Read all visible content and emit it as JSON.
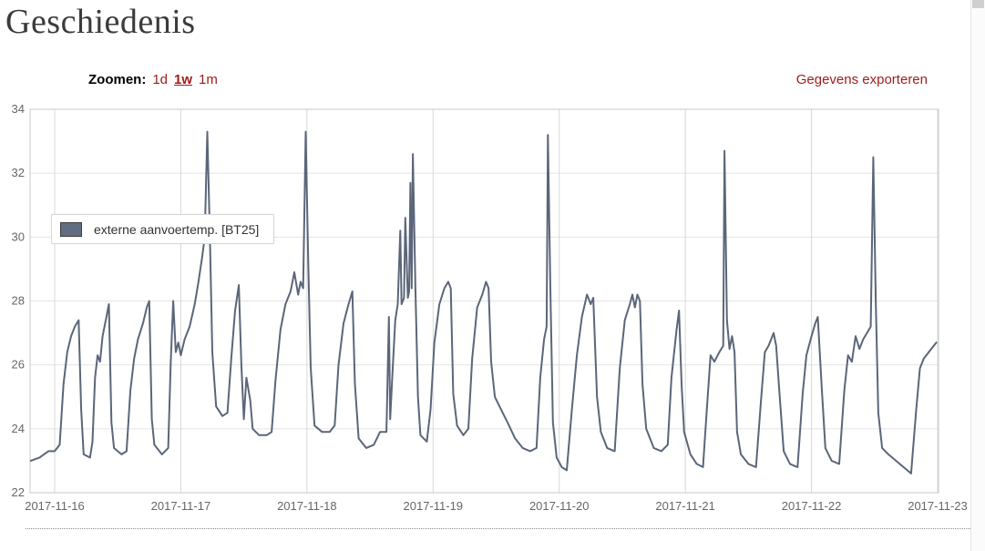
{
  "page": {
    "title": "Geschiedenis"
  },
  "toolbar": {
    "zoom_label": "Zoomen:",
    "zoom_options": [
      {
        "label": "1d",
        "active": false
      },
      {
        "label": "1w",
        "active": true
      },
      {
        "label": "1m",
        "active": false
      }
    ],
    "export_label": "Gegevens exporteren"
  },
  "legend": {
    "label": "externe aanvoertemp. [BT25]",
    "swatch_color": "#616d80",
    "swatch_border": "#3e3e3e"
  },
  "colors": {
    "accent_red": "#9d1c1c",
    "line": "#5b6679",
    "grid": "#e0e0e0",
    "plot_border": "#c8c8c8",
    "axis_label": "#666666"
  },
  "chart_data": {
    "type": "line",
    "title": "",
    "xlabel": "",
    "ylabel": "",
    "legend_position": "top-left",
    "grid": true,
    "x_axis": {
      "labels": [
        "2017-11-16",
        "2017-11-17",
        "2017-11-18",
        "2017-11-19",
        "2017-11-20",
        "2017-11-21",
        "2017-11-22",
        "2017-11-23"
      ],
      "range_days": [
        -0.195,
        7.005
      ]
    },
    "y_axis": {
      "ticks": [
        22,
        24,
        26,
        28,
        30,
        32,
        34
      ],
      "range": [
        22,
        34
      ]
    },
    "series": [
      {
        "name": "externe aanvoertemp. [BT25]",
        "points": [
          [
            -0.19,
            23.0
          ],
          [
            -0.12,
            23.1
          ],
          [
            -0.05,
            23.3
          ],
          [
            0.0,
            23.3
          ],
          [
            0.04,
            23.5
          ],
          [
            0.07,
            25.4
          ],
          [
            0.1,
            26.4
          ],
          [
            0.13,
            26.9
          ],
          [
            0.16,
            27.2
          ],
          [
            0.19,
            27.4
          ],
          [
            0.21,
            24.6
          ],
          [
            0.23,
            23.2
          ],
          [
            0.28,
            23.1
          ],
          [
            0.3,
            23.6
          ],
          [
            0.32,
            25.6
          ],
          [
            0.34,
            26.3
          ],
          [
            0.36,
            26.1
          ],
          [
            0.38,
            26.9
          ],
          [
            0.41,
            27.5
          ],
          [
            0.43,
            27.9
          ],
          [
            0.45,
            24.2
          ],
          [
            0.47,
            23.4
          ],
          [
            0.53,
            23.2
          ],
          [
            0.57,
            23.3
          ],
          [
            0.6,
            25.2
          ],
          [
            0.63,
            26.2
          ],
          [
            0.66,
            26.8
          ],
          [
            0.7,
            27.3
          ],
          [
            0.73,
            27.8
          ],
          [
            0.75,
            28.0
          ],
          [
            0.77,
            24.3
          ],
          [
            0.79,
            23.5
          ],
          [
            0.85,
            23.2
          ],
          [
            0.9,
            23.4
          ],
          [
            0.92,
            26.1
          ],
          [
            0.94,
            28.0
          ],
          [
            0.96,
            26.4
          ],
          [
            0.98,
            26.7
          ],
          [
            1.0,
            26.3
          ],
          [
            1.03,
            26.8
          ],
          [
            1.07,
            27.2
          ],
          [
            1.11,
            27.9
          ],
          [
            1.14,
            28.6
          ],
          [
            1.17,
            29.4
          ],
          [
            1.19,
            30.0
          ],
          [
            1.21,
            33.3
          ],
          [
            1.23,
            30.1
          ],
          [
            1.25,
            26.4
          ],
          [
            1.28,
            24.7
          ],
          [
            1.33,
            24.4
          ],
          [
            1.37,
            24.5
          ],
          [
            1.4,
            26.2
          ],
          [
            1.43,
            27.7
          ],
          [
            1.46,
            28.5
          ],
          [
            1.48,
            26.0
          ],
          [
            1.5,
            24.3
          ],
          [
            1.52,
            25.6
          ],
          [
            1.55,
            24.9
          ],
          [
            1.57,
            24.0
          ],
          [
            1.62,
            23.8
          ],
          [
            1.68,
            23.8
          ],
          [
            1.72,
            23.9
          ],
          [
            1.75,
            25.5
          ],
          [
            1.79,
            27.1
          ],
          [
            1.83,
            27.9
          ],
          [
            1.87,
            28.3
          ],
          [
            1.9,
            28.9
          ],
          [
            1.93,
            28.2
          ],
          [
            1.95,
            28.6
          ],
          [
            1.97,
            28.4
          ],
          [
            1.99,
            33.3
          ],
          [
            2.01,
            29.3
          ],
          [
            2.03,
            25.9
          ],
          [
            2.06,
            24.1
          ],
          [
            2.12,
            23.9
          ],
          [
            2.18,
            23.9
          ],
          [
            2.22,
            24.1
          ],
          [
            2.25,
            26.0
          ],
          [
            2.29,
            27.3
          ],
          [
            2.33,
            27.9
          ],
          [
            2.36,
            28.3
          ],
          [
            2.38,
            25.4
          ],
          [
            2.41,
            23.7
          ],
          [
            2.47,
            23.4
          ],
          [
            2.53,
            23.5
          ],
          [
            2.58,
            23.9
          ],
          [
            2.63,
            23.9
          ],
          [
            2.65,
            27.5
          ],
          [
            2.66,
            24.3
          ],
          [
            2.68,
            25.9
          ],
          [
            2.7,
            27.4
          ],
          [
            2.72,
            27.9
          ],
          [
            2.74,
            30.2
          ],
          [
            2.75,
            27.9
          ],
          [
            2.77,
            28.1
          ],
          [
            2.78,
            30.6
          ],
          [
            2.8,
            28.1
          ],
          [
            2.81,
            28.3
          ],
          [
            2.82,
            31.7
          ],
          [
            2.83,
            28.4
          ],
          [
            2.84,
            32.6
          ],
          [
            2.86,
            28.4
          ],
          [
            2.88,
            25.0
          ],
          [
            2.9,
            23.8
          ],
          [
            2.95,
            23.6
          ],
          [
            2.98,
            24.6
          ],
          [
            3.01,
            26.7
          ],
          [
            3.05,
            27.9
          ],
          [
            3.09,
            28.4
          ],
          [
            3.12,
            28.6
          ],
          [
            3.14,
            28.4
          ],
          [
            3.16,
            25.1
          ],
          [
            3.19,
            24.1
          ],
          [
            3.24,
            23.8
          ],
          [
            3.28,
            24.0
          ],
          [
            3.31,
            26.2
          ],
          [
            3.35,
            27.8
          ],
          [
            3.39,
            28.2
          ],
          [
            3.42,
            28.6
          ],
          [
            3.44,
            28.4
          ],
          [
            3.46,
            26.1
          ],
          [
            3.49,
            25.0
          ],
          [
            3.54,
            24.6
          ],
          [
            3.59,
            24.2
          ],
          [
            3.65,
            23.7
          ],
          [
            3.71,
            23.4
          ],
          [
            3.77,
            23.3
          ],
          [
            3.82,
            23.4
          ],
          [
            3.85,
            25.6
          ],
          [
            3.88,
            26.8
          ],
          [
            3.9,
            27.2
          ],
          [
            3.91,
            33.2
          ],
          [
            3.93,
            28.4
          ],
          [
            3.95,
            24.2
          ],
          [
            3.98,
            23.1
          ],
          [
            4.02,
            22.8
          ],
          [
            4.06,
            22.7
          ],
          [
            4.1,
            24.6
          ],
          [
            4.14,
            26.3
          ],
          [
            4.18,
            27.5
          ],
          [
            4.22,
            28.2
          ],
          [
            4.25,
            27.9
          ],
          [
            4.27,
            28.1
          ],
          [
            4.3,
            25.0
          ],
          [
            4.33,
            23.9
          ],
          [
            4.38,
            23.4
          ],
          [
            4.44,
            23.3
          ],
          [
            4.48,
            25.9
          ],
          [
            4.52,
            27.4
          ],
          [
            4.56,
            27.9
          ],
          [
            4.58,
            28.2
          ],
          [
            4.6,
            27.8
          ],
          [
            4.62,
            28.2
          ],
          [
            4.64,
            28.0
          ],
          [
            4.66,
            25.4
          ],
          [
            4.69,
            24.0
          ],
          [
            4.75,
            23.4
          ],
          [
            4.81,
            23.3
          ],
          [
            4.86,
            23.5
          ],
          [
            4.89,
            25.6
          ],
          [
            4.93,
            27.1
          ],
          [
            4.95,
            27.7
          ],
          [
            4.97,
            25.4
          ],
          [
            4.99,
            23.9
          ],
          [
            5.04,
            23.2
          ],
          [
            5.09,
            22.9
          ],
          [
            5.14,
            22.8
          ],
          [
            5.17,
            24.6
          ],
          [
            5.2,
            26.3
          ],
          [
            5.23,
            26.1
          ],
          [
            5.27,
            26.4
          ],
          [
            5.3,
            26.6
          ],
          [
            5.31,
            32.7
          ],
          [
            5.33,
            27.4
          ],
          [
            5.35,
            26.5
          ],
          [
            5.37,
            26.9
          ],
          [
            5.39,
            26.4
          ],
          [
            5.41,
            23.9
          ],
          [
            5.44,
            23.2
          ],
          [
            5.5,
            22.9
          ],
          [
            5.56,
            22.8
          ],
          [
            5.6,
            24.9
          ],
          [
            5.63,
            26.4
          ],
          [
            5.66,
            26.6
          ],
          [
            5.7,
            27.0
          ],
          [
            5.72,
            26.6
          ],
          [
            5.75,
            24.9
          ],
          [
            5.78,
            23.3
          ],
          [
            5.83,
            22.9
          ],
          [
            5.89,
            22.8
          ],
          [
            5.93,
            25.1
          ],
          [
            5.96,
            26.3
          ],
          [
            6.0,
            26.9
          ],
          [
            6.03,
            27.3
          ],
          [
            6.05,
            27.5
          ],
          [
            6.08,
            25.4
          ],
          [
            6.11,
            23.4
          ],
          [
            6.16,
            23.0
          ],
          [
            6.22,
            22.9
          ],
          [
            6.26,
            25.2
          ],
          [
            6.29,
            26.3
          ],
          [
            6.32,
            26.1
          ],
          [
            6.35,
            26.9
          ],
          [
            6.38,
            26.5
          ],
          [
            6.41,
            26.8
          ],
          [
            6.44,
            27.0
          ],
          [
            6.47,
            27.2
          ],
          [
            6.49,
            32.5
          ],
          [
            6.51,
            27.9
          ],
          [
            6.53,
            24.5
          ],
          [
            6.56,
            23.4
          ],
          [
            6.61,
            23.2
          ],
          [
            6.67,
            23.0
          ],
          [
            6.73,
            22.8
          ],
          [
            6.79,
            22.6
          ],
          [
            6.83,
            24.6
          ],
          [
            6.86,
            25.9
          ],
          [
            6.89,
            26.2
          ],
          [
            6.93,
            26.4
          ],
          [
            6.97,
            26.6
          ],
          [
            6.99,
            26.7
          ]
        ]
      }
    ]
  }
}
